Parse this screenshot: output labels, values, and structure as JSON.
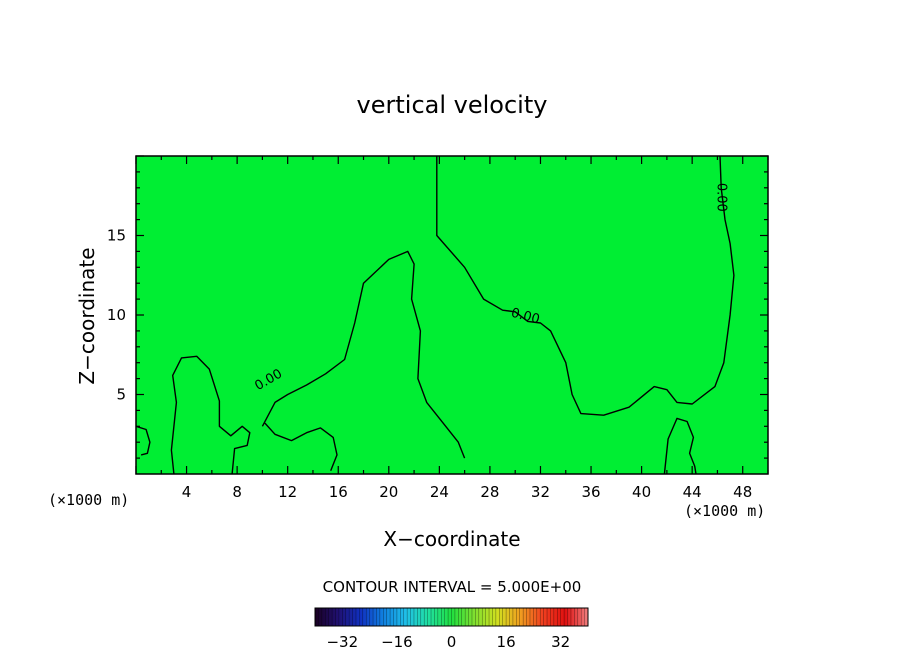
{
  "chart_data": {
    "type": "heatmap",
    "title": "vertical velocity",
    "xlabel": "X−coordinate",
    "ylabel": "Z−coordinate",
    "xunit_left": "(×1000 m)",
    "xunit_right": "(×1000 m)",
    "xlim": [
      0,
      50
    ],
    "ylim": [
      0,
      20
    ],
    "xticks": [
      4,
      8,
      12,
      16,
      20,
      24,
      28,
      32,
      36,
      40,
      44,
      48
    ],
    "yticks": [
      5,
      10,
      15
    ],
    "contour_interval_label": "CONTOUR INTERVAL = 5.000E+00",
    "contour_labels": [
      "0.00",
      "0.00",
      "0.00"
    ],
    "colorbar": {
      "range": [
        -40,
        40
      ],
      "ticks": [
        -32,
        -16,
        0,
        16,
        32
      ],
      "colors": [
        "#1a0022",
        "#201070",
        "#1030c0",
        "#1080e0",
        "#20c0e8",
        "#20e0a0",
        "#20e040",
        "#80e030",
        "#d0e020",
        "#f0a020",
        "#f04020",
        "#e01010",
        "#f08080"
      ]
    },
    "field_color": "#00ee33",
    "contours": [
      {
        "level": 0,
        "points": [
          [
            23.8,
            20
          ],
          [
            23.8,
            15
          ],
          [
            26,
            13
          ],
          [
            27.5,
            11
          ],
          [
            29,
            10.3
          ],
          [
            30,
            10.2
          ],
          [
            31,
            9.6
          ],
          [
            32,
            9.5
          ],
          [
            32.8,
            9
          ],
          [
            34,
            7
          ],
          [
            34.5,
            5
          ],
          [
            35.2,
            3.8
          ],
          [
            37,
            3.7
          ],
          [
            39,
            4.2
          ],
          [
            41,
            5.5
          ],
          [
            42,
            5.3
          ],
          [
            42.8,
            4.5
          ],
          [
            44,
            4.4
          ],
          [
            45.8,
            5.5
          ],
          [
            46.5,
            7
          ],
          [
            47,
            10
          ],
          [
            47.3,
            12.5
          ],
          [
            47,
            14.5
          ],
          [
            46.6,
            16
          ],
          [
            46.3,
            18
          ],
          [
            46.2,
            20
          ]
        ]
      },
      {
        "level": 0,
        "points": [
          [
            10,
            3
          ],
          [
            11,
            4.5
          ],
          [
            12,
            5
          ],
          [
            13.5,
            5.6
          ],
          [
            15,
            6.3
          ],
          [
            16.5,
            7.2
          ],
          [
            17.3,
            9.5
          ],
          [
            18,
            12
          ],
          [
            20,
            13.5
          ],
          [
            21.5,
            14
          ],
          [
            22,
            13.2
          ],
          [
            21.8,
            11
          ],
          [
            22.5,
            9
          ],
          [
            22.3,
            6
          ],
          [
            23,
            4.5
          ],
          [
            24.5,
            3
          ],
          [
            25.5,
            2
          ],
          [
            26,
            1
          ]
        ]
      },
      {
        "level": 0,
        "points": [
          [
            3,
            0
          ],
          [
            2.8,
            1.5
          ],
          [
            3,
            3
          ],
          [
            3.2,
            4.5
          ],
          [
            2.9,
            6.2
          ],
          [
            3.6,
            7.3
          ],
          [
            4.8,
            7.4
          ],
          [
            5.8,
            6.6
          ],
          [
            6.6,
            4.6
          ],
          [
            6.6,
            3
          ],
          [
            7.5,
            2.4
          ],
          [
            8.4,
            3
          ],
          [
            9,
            2.6
          ],
          [
            8.8,
            1.8
          ],
          [
            7.8,
            1.6
          ],
          [
            7.6,
            0
          ]
        ]
      },
      {
        "level": 0,
        "points": [
          [
            10.2,
            3.2
          ],
          [
            11,
            2.5
          ],
          [
            12.3,
            2.1
          ],
          [
            13.5,
            2.6
          ],
          [
            14.6,
            2.9
          ],
          [
            15.6,
            2.3
          ],
          [
            15.9,
            1.2
          ],
          [
            15.4,
            0.2
          ]
        ]
      },
      {
        "level": 0,
        "points": [
          [
            0,
            3
          ],
          [
            0.8,
            2.8
          ],
          [
            1.1,
            2
          ],
          [
            0.9,
            1.3
          ],
          [
            0.4,
            1.2
          ]
        ]
      },
      {
        "level": 0,
        "points": [
          [
            41.8,
            0
          ],
          [
            42.1,
            2.2
          ],
          [
            42.8,
            3.5
          ],
          [
            43.6,
            3.3
          ],
          [
            44.1,
            2.3
          ],
          [
            43.8,
            1.3
          ],
          [
            44.2,
            0.5
          ],
          [
            44.3,
            0
          ]
        ]
      }
    ]
  }
}
